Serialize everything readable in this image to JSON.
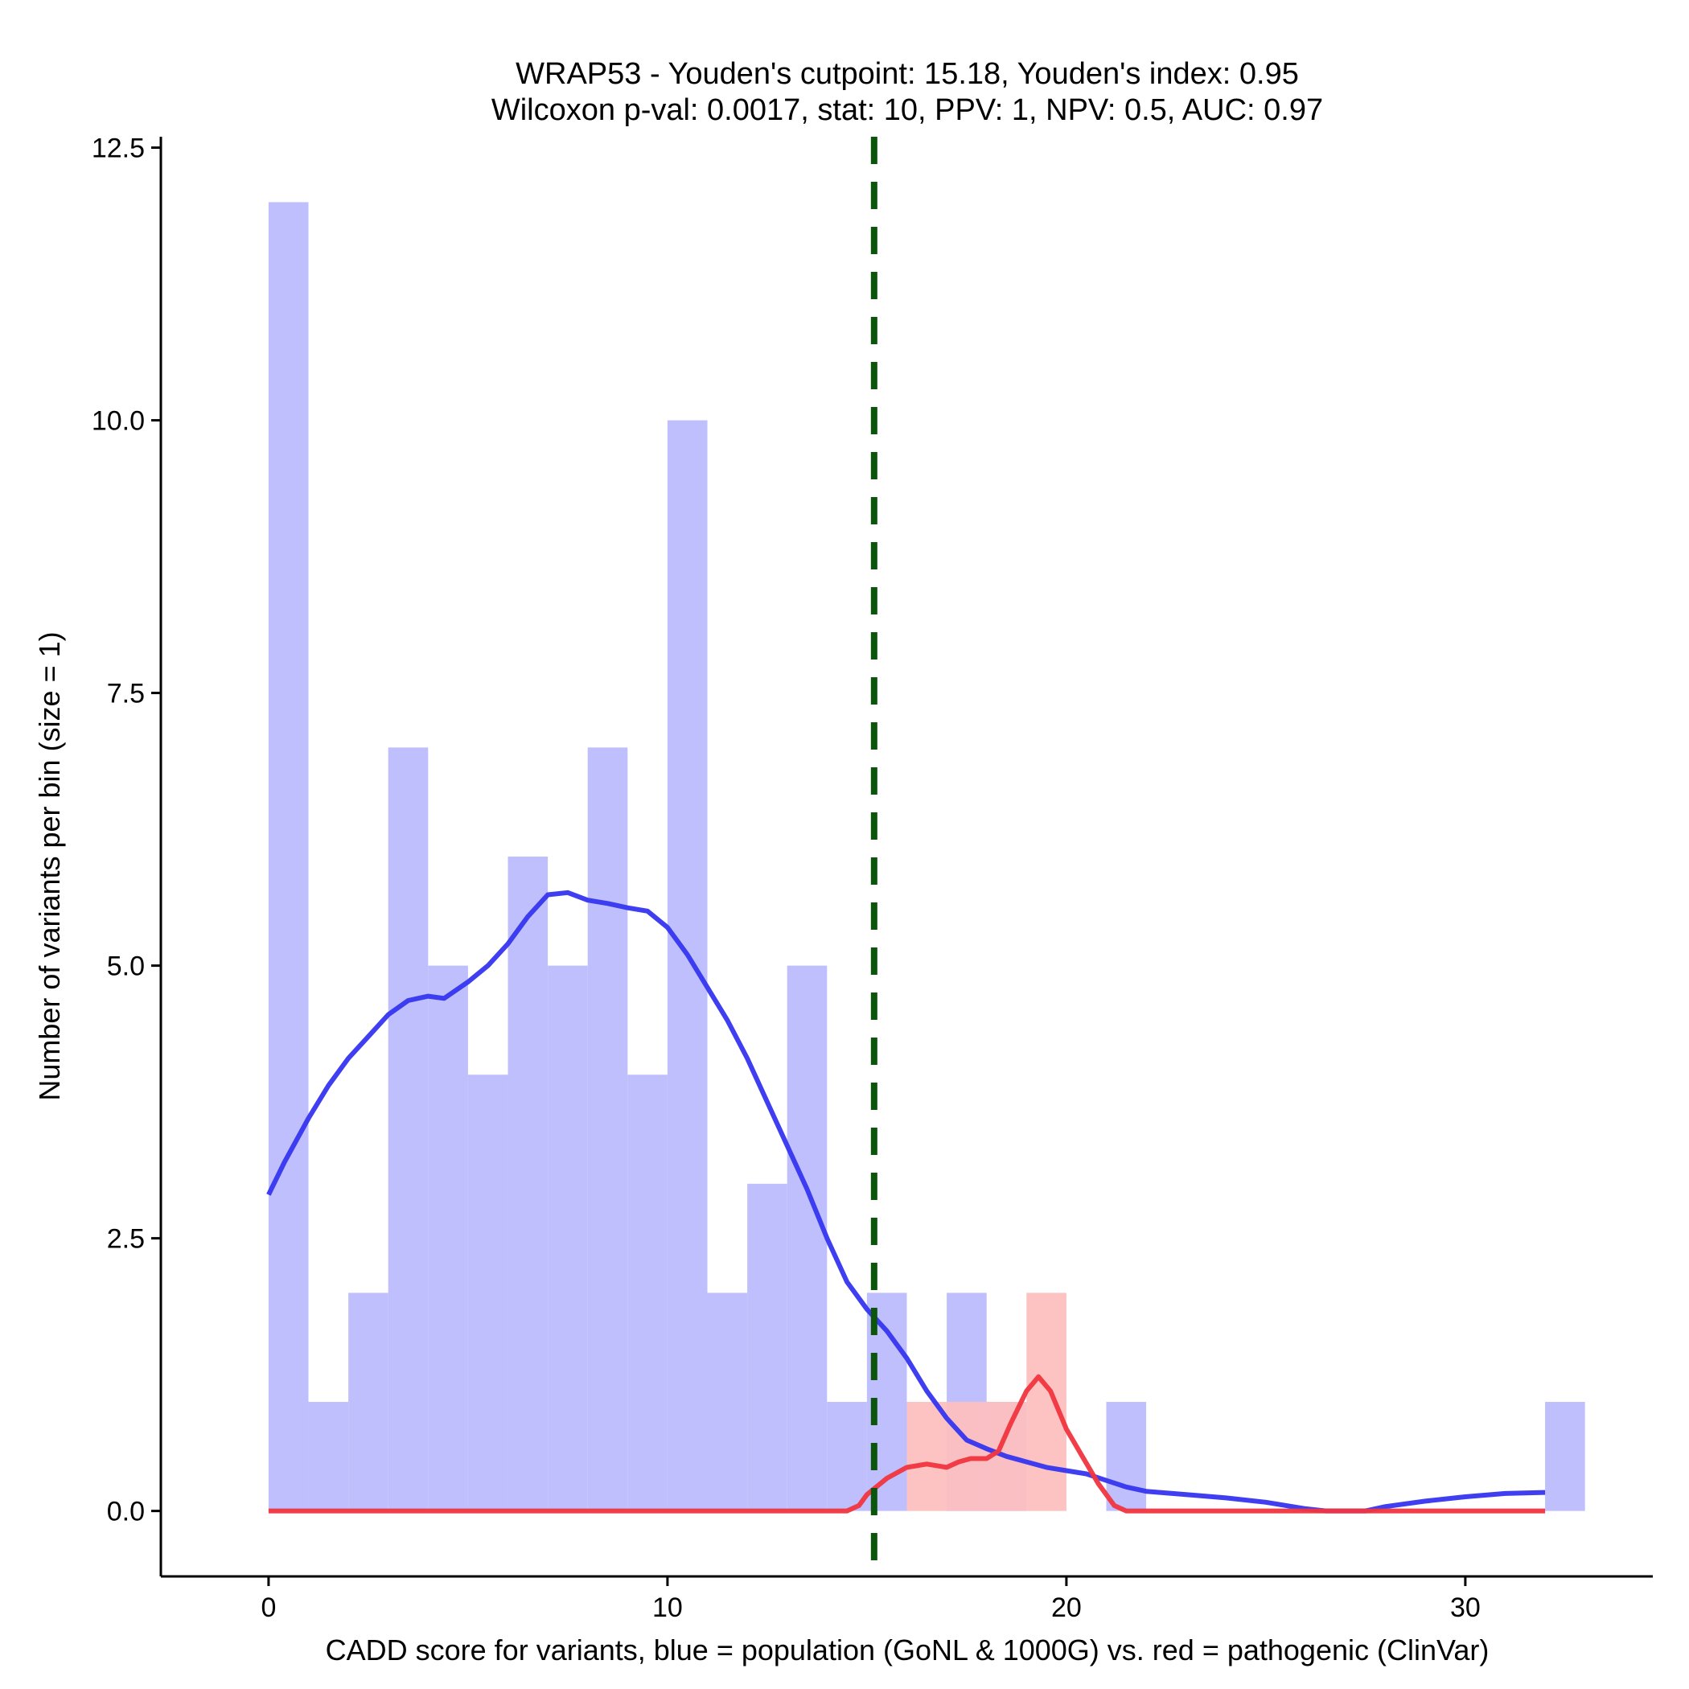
{
  "chart_data": {
    "type": "bar",
    "title": "WRAP53 - Youden's cutpoint: 15.18, Youden's index: 0.95",
    "subtitle": "Wilcoxon p-val: 0.0017, stat: 10, PPV: 1, NPV: 0.5, AUC: 0.97",
    "xlabel": "CADD score for variants, blue = population (GoNL & 1000G) vs. red = pathogenic (ClinVar)",
    "ylabel": "Number of variants per bin (size = 1)",
    "xlim": [
      -2.7,
      34.7
    ],
    "ylim": [
      -0.6,
      12.6
    ],
    "x_ticks": [
      0,
      10,
      20,
      30
    ],
    "x_tick_labels": [
      "0",
      "10",
      "20",
      "30"
    ],
    "y_ticks": [
      0,
      2.5,
      5,
      7.5,
      10,
      12.5
    ],
    "y_tick_labels": [
      "0.0",
      "2.5",
      "5.0",
      "7.5",
      "10.0",
      "12.5"
    ],
    "bin_width": 1,
    "grid": false,
    "cutpoint": 15.18,
    "colors": {
      "population_bar": "#bfbffd",
      "pathogenic_bar": "#fdbfbf",
      "population_line": "#3535f0",
      "pathogenic_line": "#f0353f",
      "cutpoint_line": "#0b560b",
      "axis": "#000000"
    },
    "series": [
      {
        "bins": [
          {
            "x0": 0,
            "count": 12
          },
          {
            "x0": 1,
            "count": 1
          },
          {
            "x0": 2,
            "count": 2
          },
          {
            "x0": 3,
            "count": 7
          },
          {
            "x0": 4,
            "count": 5
          },
          {
            "x0": 5,
            "count": 4
          },
          {
            "x0": 6,
            "count": 6
          },
          {
            "x0": 7,
            "count": 5
          },
          {
            "x0": 8,
            "count": 7
          },
          {
            "x0": 9,
            "count": 4
          },
          {
            "x0": 10,
            "count": 10
          },
          {
            "x0": 11,
            "count": 2
          },
          {
            "x0": 12,
            "count": 3
          },
          {
            "x0": 13,
            "count": 5
          },
          {
            "x0": 14,
            "count": 1
          },
          {
            "x0": 15,
            "count": 2
          },
          {
            "x0": 17,
            "count": 2
          },
          {
            "x0": 18,
            "count": 1
          },
          {
            "x0": 21,
            "count": 1
          },
          {
            "x0": 32,
            "count": 1
          }
        ],
        "density": [
          [
            0,
            2.9
          ],
          [
            0.4,
            3.2
          ],
          [
            1,
            3.6
          ],
          [
            1.5,
            3.9
          ],
          [
            2,
            4.15
          ],
          [
            2.5,
            4.35
          ],
          [
            3,
            4.55
          ],
          [
            3.5,
            4.68
          ],
          [
            4,
            4.72
          ],
          [
            4.4,
            4.7
          ],
          [
            5,
            4.85
          ],
          [
            5.5,
            5.0
          ],
          [
            6,
            5.2
          ],
          [
            6.5,
            5.45
          ],
          [
            7,
            5.65
          ],
          [
            7.5,
            5.67
          ],
          [
            8,
            5.6
          ],
          [
            8.5,
            5.57
          ],
          [
            9,
            5.53
          ],
          [
            9.5,
            5.5
          ],
          [
            10,
            5.35
          ],
          [
            10.5,
            5.1
          ],
          [
            11,
            4.8
          ],
          [
            11.5,
            4.5
          ],
          [
            12,
            4.15
          ],
          [
            12.5,
            3.75
          ],
          [
            13,
            3.35
          ],
          [
            13.5,
            2.95
          ],
          [
            14,
            2.5
          ],
          [
            14.5,
            2.1
          ],
          [
            15,
            1.85
          ],
          [
            15.5,
            1.65
          ],
          [
            16,
            1.4
          ],
          [
            16.5,
            1.1
          ],
          [
            17,
            0.85
          ],
          [
            17.5,
            0.65
          ],
          [
            18,
            0.57
          ],
          [
            18.5,
            0.5
          ],
          [
            19,
            0.45
          ],
          [
            19.5,
            0.4
          ],
          [
            20,
            0.37
          ],
          [
            20.5,
            0.34
          ],
          [
            21,
            0.28
          ],
          [
            21.5,
            0.22
          ],
          [
            22,
            0.18
          ],
          [
            23,
            0.15
          ],
          [
            24,
            0.12
          ],
          [
            25,
            0.08
          ],
          [
            26,
            0.02
          ],
          [
            26.5,
            0.0
          ],
          [
            27.5,
            0.0
          ],
          [
            28,
            0.04
          ],
          [
            29,
            0.09
          ],
          [
            30,
            0.13
          ],
          [
            31,
            0.16
          ],
          [
            32,
            0.17
          ]
        ]
      },
      {
        "bins": [
          {
            "x0": 16,
            "count": 1
          },
          {
            "x0": 17,
            "count": 1
          },
          {
            "x0": 18,
            "count": 1
          },
          {
            "x0": 19,
            "count": 2
          }
        ],
        "density": [
          [
            0,
            0
          ],
          [
            14.5,
            0
          ],
          [
            14.8,
            0.05
          ],
          [
            15,
            0.15
          ],
          [
            15.5,
            0.3
          ],
          [
            16,
            0.4
          ],
          [
            16.5,
            0.43
          ],
          [
            17,
            0.4
          ],
          [
            17.3,
            0.45
          ],
          [
            17.6,
            0.48
          ],
          [
            18,
            0.48
          ],
          [
            18.3,
            0.55
          ],
          [
            18.6,
            0.8
          ],
          [
            19,
            1.1
          ],
          [
            19.3,
            1.23
          ],
          [
            19.6,
            1.1
          ],
          [
            20,
            0.75
          ],
          [
            20.4,
            0.5
          ],
          [
            20.8,
            0.25
          ],
          [
            21.2,
            0.05
          ],
          [
            21.5,
            0
          ],
          [
            32,
            0
          ]
        ]
      }
    ]
  }
}
